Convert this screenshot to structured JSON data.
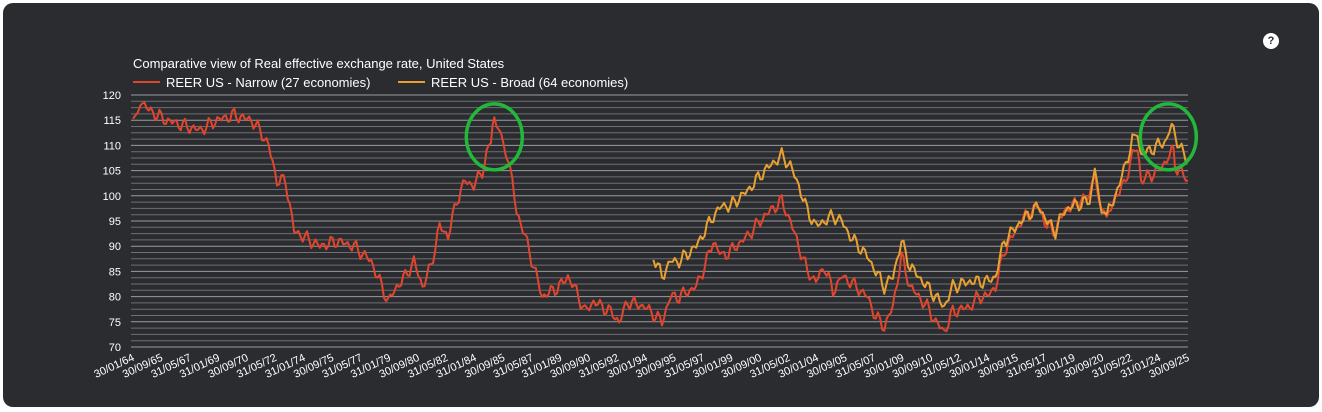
{
  "help_icon": "?",
  "chart_data": {
    "type": "line",
    "title": "Comparative view of Real effective exchange rate, United States",
    "xlabel": "",
    "ylabel": "",
    "ylim": [
      70,
      120
    ],
    "yticks": [
      70,
      75,
      80,
      85,
      90,
      95,
      100,
      105,
      110,
      115,
      120
    ],
    "xlim": [
      1964.08,
      2025.75
    ],
    "grid": true,
    "legend": "top-left",
    "xtick_labels": [
      "30/01/64",
      "30/09/65",
      "31/05/67",
      "31/01/69",
      "30/09/70",
      "31/05/72",
      "31/01/74",
      "30/09/75",
      "31/05/77",
      "31/01/79",
      "30/09/80",
      "31/05/82",
      "31/01/84",
      "30/09/85",
      "31/05/87",
      "31/01/89",
      "30/09/90",
      "31/05/92",
      "30/01/94",
      "30/09/95",
      "31/05/97",
      "30/01/99",
      "30/09/00",
      "31/05/02",
      "30/01/04",
      "30/09/05",
      "31/05/07",
      "30/01/09",
      "30/09/10",
      "31/05/12",
      "30/01/14",
      "30/09/15",
      "31/05/17",
      "30/01/19",
      "30/09/20",
      "31/05/22",
      "31/01/24",
      "30/09/25"
    ],
    "series": [
      {
        "name": "REER US - Narrow (27 economies)",
        "color": "#e0452e",
        "x": [
          1964.08,
          1964.5,
          1965,
          1966,
          1967,
          1968,
          1969,
          1970,
          1971,
          1971.5,
          1972,
          1972.5,
          1973,
          1973.5,
          1974,
          1975,
          1976,
          1977,
          1978,
          1979,
          1979.5,
          1980,
          1980.5,
          1981,
          1981.5,
          1982,
          1982.5,
          1983,
          1983.5,
          1984,
          1984.5,
          1985,
          1985.2,
          1985.6,
          1986,
          1986.5,
          1987,
          1987.5,
          1988,
          1989,
          1989.5,
          1990,
          1990.5,
          1991,
          1992,
          1992.5,
          1993,
          1994,
          1995,
          1995.5,
          1996,
          1997,
          1997.5,
          1998,
          1998.5,
          1999,
          2000,
          2001,
          2002,
          2002.5,
          2003,
          2003.5,
          2004,
          2004.5,
          2005,
          2005.5,
          2006,
          2007,
          2007.5,
          2008,
          2008.5,
          2009,
          2009.5,
          2010,
          2010.5,
          2011,
          2011.5,
          2012,
          2013,
          2013.5,
          2014,
          2014.5,
          2015,
          2015.5,
          2016,
          2017,
          2017.5,
          2018,
          2018.5,
          2019,
          2020,
          2020.3,
          2020.7,
          2021,
          2021.5,
          2022,
          2022.5,
          2022.8,
          2023,
          2023.5,
          2024,
          2024.5,
          2024.8,
          2025,
          2025.5,
          2025.75
        ],
        "y": [
          115,
          119,
          117,
          115,
          114,
          113,
          115,
          116,
          115,
          113,
          110,
          103,
          103,
          93,
          92,
          90,
          91,
          90,
          87,
          79,
          82,
          84,
          87,
          82,
          86,
          94,
          92,
          99,
          103,
          102,
          105,
          111,
          116,
          112,
          108,
          97,
          92,
          86,
          80,
          82,
          84,
          81,
          77,
          79,
          77,
          75,
          79,
          78,
          75,
          80,
          80,
          82,
          86,
          91,
          88,
          89,
          92,
          96,
          99,
          95,
          90,
          85,
          83,
          86,
          81,
          84,
          83,
          80,
          76,
          74,
          78,
          88,
          82,
          80,
          78,
          75,
          73,
          77,
          78,
          80,
          80,
          82,
          89,
          92,
          95,
          98,
          94,
          93,
          97,
          98,
          100,
          103,
          97,
          95,
          100,
          102,
          108,
          110,
          103,
          104,
          105,
          107,
          111,
          106,
          104,
          103
        ]
      },
      {
        "name": "REER US - Broad (64 economies)",
        "color": "#e8a030",
        "x": [
          1994.5,
          1995,
          1995.5,
          1996,
          1997,
          1998,
          1998.5,
          1999,
          2000,
          2001,
          2002,
          2002.5,
          2003,
          2003.5,
          2004,
          2005,
          2005.5,
          2006,
          2007,
          2008,
          2008.5,
          2009,
          2009.5,
          2010,
          2011,
          2011.5,
          2012,
          2013,
          2014,
          2014.5,
          2015,
          2016,
          2017,
          2017.5,
          2018,
          2018.5,
          2019,
          2020,
          2020.3,
          2020.7,
          2021,
          2021.5,
          2022,
          2022.5,
          2022.8,
          2023,
          2023.5,
          2024,
          2024.5,
          2024.8,
          2025,
          2025.5,
          2025.75
        ],
        "y": [
          88,
          84,
          87,
          87,
          90,
          96,
          98,
          98,
          101,
          105,
          108,
          106,
          102,
          97,
          94,
          96,
          95,
          92,
          88,
          82,
          84,
          91,
          86,
          84,
          80,
          78,
          82,
          83,
          83,
          84,
          91,
          95,
          98,
          95,
          93,
          97,
          98,
          99,
          104,
          97,
          96,
          100,
          105,
          111,
          112,
          108,
          109,
          110,
          111,
          115,
          112,
          108,
          107
        ]
      }
    ],
    "annotations": [
      {
        "type": "circle",
        "color": "#22b83a",
        "x": 1985.2,
        "y": 111.7
      },
      {
        "type": "circle",
        "color": "#22b83a",
        "x": 2024.6,
        "y": 111.7
      }
    ]
  }
}
